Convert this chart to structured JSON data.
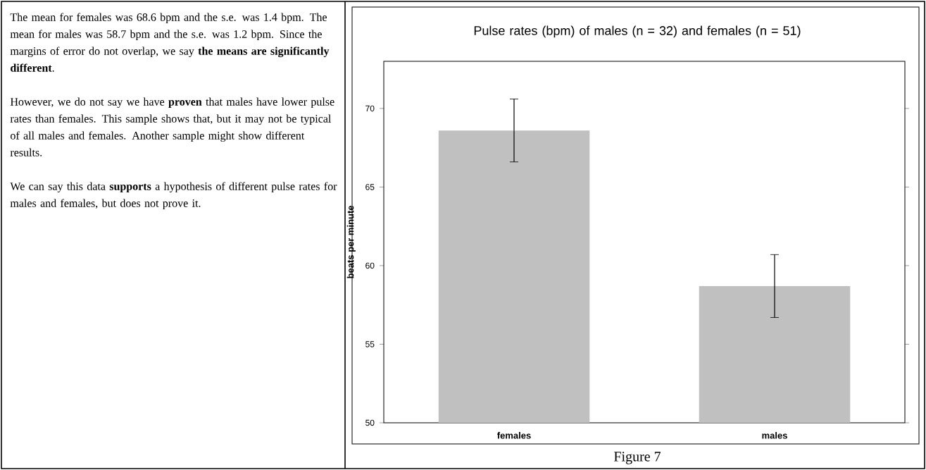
{
  "chart_data": {
    "type": "bar",
    "title": "Pulse rates (bpm) of males (n = 32) and females (n = 51)",
    "ylabel": "beats per minute",
    "categories": [
      "females",
      "males"
    ],
    "values": [
      68.6,
      58.7
    ],
    "errors": [
      2,
      2
    ],
    "color": "#c0c0c0",
    "ylim": [
      50,
      73
    ],
    "yticks": [
      50,
      55,
      60,
      65,
      70
    ],
    "grid": false,
    "annotations": [
      "The mean for females was 68.6 bpm and the s.e. was 1.4 bpm.  The mean for males was 58.7 bpm and the s.e. was 1.2 bpm.  Since the margins of error do not overlap, we say **the means are significantly different**.",
      "However, we do not say we have **proven** that males have lower pulse rates than females.  This sample shows that, but it may not be typical of all males and females.  Another sample might show different results.",
      "We can say this data **supports** a hypothesis of different pulse rates for males and females, but does not prove it.",
      "Figure 7"
    ]
  }
}
